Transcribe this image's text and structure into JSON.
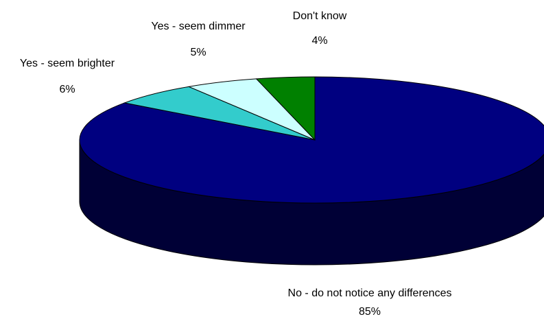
{
  "chart_data": {
    "type": "pie",
    "title": "",
    "three_d": true,
    "legend": "none",
    "slices": [
      {
        "label": "No - do not notice any differences",
        "percent_label": "85%",
        "value": 85,
        "color": "#000080"
      },
      {
        "label": "Yes - seem brighter",
        "percent_label": "6%",
        "value": 6,
        "color": "#33CCCC"
      },
      {
        "label": "Yes - seem dimmer",
        "percent_label": "5%",
        "value": 5,
        "color": "#CCFFFF"
      },
      {
        "label": "Don't know",
        "percent_label": "4%",
        "value": 4,
        "color": "#008000"
      }
    ]
  }
}
